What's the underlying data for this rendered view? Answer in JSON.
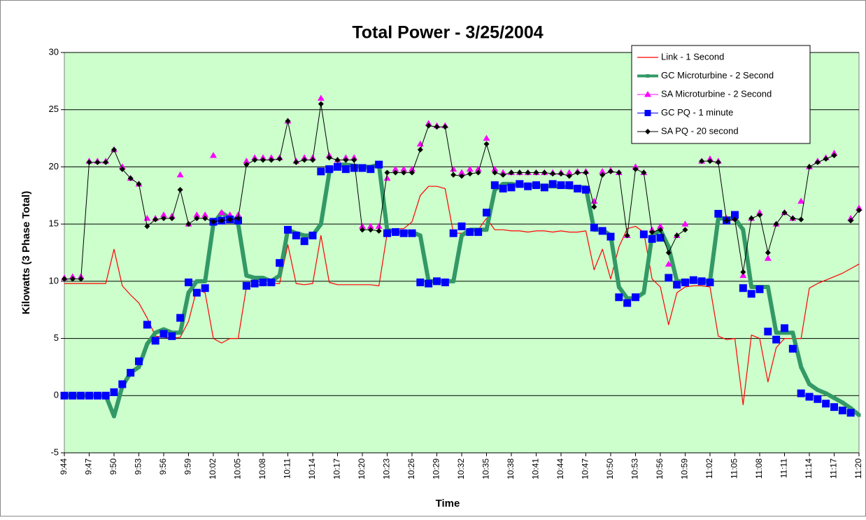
{
  "chart_data": {
    "type": "line",
    "title": "Total Power - 3/25/2004",
    "x_label": "Time",
    "y_label": "Kilowatts (3 Phase Total)",
    "ylim": [
      -5,
      30
    ],
    "yticks": [
      -5,
      0,
      5,
      10,
      15,
      20,
      25,
      30
    ],
    "grid": true,
    "legend": "top-right",
    "categories": [
      "9:44",
      null,
      null,
      "9:47",
      null,
      null,
      "9:50",
      null,
      null,
      "9:53",
      null,
      null,
      "9:56",
      null,
      null,
      "9:59",
      null,
      null,
      "10:02",
      null,
      null,
      "10:05",
      null,
      null,
      "10:08",
      null,
      null,
      "10:11",
      null,
      null,
      "10:14",
      null,
      null,
      "10:17",
      null,
      null,
      "10:20",
      null,
      null,
      "10:23",
      null,
      null,
      "10:26",
      null,
      null,
      "10:29",
      null,
      null,
      "10:32",
      null,
      null,
      "10:35",
      null,
      null,
      "10:38",
      null,
      null,
      "10:41",
      null,
      null,
      "10:44",
      null,
      null,
      "10:47",
      null,
      null,
      "10:50",
      null,
      null,
      "10:53",
      null,
      null,
      "10:56",
      null,
      null,
      "10:59",
      null,
      null,
      "11:02",
      null,
      null,
      "11:05",
      null,
      null,
      "11:08",
      null,
      null,
      "11:11",
      null,
      null,
      "11:14",
      null,
      null,
      "11:17",
      null,
      null,
      "11:20"
    ],
    "series": [
      {
        "name": "Link - 1 Second",
        "color": "#ff0000",
        "values": [
          9.8,
          9.8,
          9.8,
          9.8,
          9.8,
          9.8,
          12.8,
          9.6,
          8.8,
          8.1,
          6.8,
          5.2,
          5.1,
          5,
          5.1,
          6.5,
          9.3,
          9,
          5,
          4.6,
          5,
          5,
          9.5,
          9.7,
          9.7,
          9.8,
          9.8,
          13.2,
          9.8,
          9.7,
          9.8,
          14,
          9.9,
          9.7,
          9.7,
          9.7,
          9.7,
          9.7,
          9.6,
          14.2,
          14.6,
          14.6,
          15.2,
          17.5,
          18.3,
          18.3,
          18.1,
          14.2,
          14.2,
          14.4,
          14.5,
          15.5,
          14.5,
          14.5,
          14.4,
          14.4,
          14.3,
          14.4,
          14.4,
          14.3,
          14.4,
          14.3,
          14.3,
          14.4,
          11,
          12.8,
          10.2,
          13,
          14.6,
          14.8,
          14.3,
          10.2,
          9.5,
          6.2,
          9,
          9.5,
          9.6,
          9.6,
          9.5,
          5.2,
          4.9,
          5,
          -0.8,
          5.3,
          5,
          1.2,
          4.2,
          5,
          5,
          5,
          9.4,
          9.8,
          10.1,
          10.4,
          10.7,
          11.1,
          11.5
        ]
      },
      {
        "name": "GC Microturbine  - 2 Second",
        "color": "#339966",
        "values": [
          0,
          0,
          0,
          0,
          0,
          0,
          -1.8,
          0.8,
          2,
          2.5,
          4.5,
          5.5,
          5.8,
          5.5,
          5.5,
          9,
          10,
          10,
          15,
          16,
          15.5,
          15,
          10.5,
          10.3,
          10.3,
          10,
          10.5,
          14.5,
          14.2,
          14,
          14,
          15,
          19.5,
          20.2,
          20.2,
          20.1,
          20,
          20,
          20.2,
          14.5,
          14.3,
          14.3,
          14.3,
          14,
          10,
          10,
          10,
          10,
          14,
          14.5,
          14.5,
          14.5,
          18,
          18.5,
          18.5,
          18.4,
          18.4,
          18.4,
          18.3,
          18.3,
          18.3,
          18.2,
          18.2,
          18.2,
          14.5,
          14.5,
          14,
          9.5,
          8.5,
          8.5,
          9,
          14,
          14.5,
          13,
          10,
          10,
          10,
          10,
          10,
          15.5,
          15.5,
          15.5,
          14.5,
          9.5,
          9.5,
          9.5,
          5.5,
          5.5,
          5.5,
          2.5,
          1,
          0.5,
          0.2,
          -0.2,
          -0.6,
          -1.1,
          -1.7
        ]
      },
      {
        "name": "SA Microturbine - 2 Second",
        "color": "#ff00ff",
        "values": [
          10.3,
          10.4,
          10.4,
          20.5,
          20.5,
          20.5,
          21.5,
          20,
          19,
          18.5,
          15.5,
          15.5,
          15.8,
          15.7,
          19.3,
          15,
          15.8,
          15.8,
          21,
          16,
          15.8,
          15.8,
          20.5,
          20.8,
          20.8,
          20.8,
          20.8,
          24,
          20.5,
          20.8,
          20.8,
          26,
          21,
          20.6,
          20.8,
          20.8,
          14.8,
          14.8,
          14.8,
          19,
          19.8,
          19.8,
          19.8,
          22,
          23.8,
          23.6,
          23.6,
          19.8,
          19.5,
          19.8,
          19.8,
          22.5,
          19.8,
          19.5,
          19.5,
          19.5,
          19.5,
          19.5,
          19.5,
          19.5,
          19.5,
          19.5,
          19.6,
          19.6,
          17,
          19.6,
          19.7,
          19.5,
          14,
          20,
          19.5,
          14.5,
          14.8,
          11.5,
          14,
          15,
          null,
          20.5,
          20.7,
          20.5,
          15.5,
          15.5,
          10.5,
          15.5,
          16,
          12,
          15,
          16,
          15.5,
          17,
          20,
          20.5,
          20.8,
          21.2,
          null,
          15.5,
          16.4
        ]
      },
      {
        "name": "GC PQ - 1 minute",
        "color": "#0000ff",
        "values": [
          0,
          0,
          0,
          0,
          0,
          0,
          0.3,
          1,
          2,
          3,
          6.2,
          4.8,
          5.4,
          5.2,
          6.8,
          9.9,
          9,
          9.4,
          15.2,
          15.3,
          15.4,
          15.3,
          9.6,
          9.8,
          9.9,
          9.9,
          11.6,
          14.5,
          14,
          13.5,
          14,
          19.6,
          19.8,
          20,
          19.8,
          19.9,
          19.9,
          19.8,
          20.2,
          14.2,
          14.3,
          14.2,
          14.2,
          9.9,
          9.8,
          10,
          9.9,
          14.2,
          14.8,
          14.3,
          14.3,
          16,
          18.4,
          18.1,
          18.2,
          18.5,
          18.3,
          18.4,
          18.2,
          18.5,
          18.4,
          18.4,
          18.1,
          18,
          14.7,
          14.4,
          13.9,
          8.6,
          8.1,
          8.6,
          14.1,
          13.7,
          13.8,
          10.3,
          9.7,
          9.9,
          10.1,
          10,
          9.9,
          15.9,
          15.3,
          15.8,
          9.4,
          8.9,
          9.3,
          5.6,
          4.9,
          5.9,
          4.1,
          0.2,
          -0.1,
          -0.3,
          -0.7,
          -1,
          -1.3,
          -1.5,
          null
        ]
      },
      {
        "name": "SA PQ - 20 second",
        "color": "#000000",
        "values": [
          10.2,
          10.2,
          10.2,
          20.4,
          20.4,
          20.4,
          21.5,
          19.8,
          19,
          18.5,
          14.8,
          15.4,
          15.5,
          15.5,
          18,
          15,
          15.5,
          15.5,
          15.2,
          15.3,
          15.4,
          15.5,
          20.2,
          20.6,
          20.6,
          20.6,
          20.7,
          24,
          20.4,
          20.6,
          20.6,
          25.5,
          20.8,
          20.6,
          20.6,
          20.6,
          14.5,
          14.5,
          14.4,
          19.5,
          19.5,
          19.5,
          19.5,
          21.5,
          23.6,
          23.5,
          23.5,
          19.3,
          19.2,
          19.4,
          19.5,
          22,
          19.5,
          19.3,
          19.5,
          19.5,
          19.5,
          19.5,
          19.5,
          19.4,
          19.4,
          19.2,
          19.5,
          19.5,
          16.5,
          19.3,
          19.6,
          19.5,
          14,
          19.8,
          19.5,
          14.3,
          14.5,
          12.5,
          14,
          14.5,
          null,
          20.5,
          20.5,
          20.4,
          15.3,
          15.4,
          10.8,
          15.5,
          15.8,
          12.5,
          15,
          16,
          15.5,
          15.4,
          20,
          20.4,
          20.7,
          21,
          null,
          15.3,
          16.2
        ]
      }
    ]
  }
}
